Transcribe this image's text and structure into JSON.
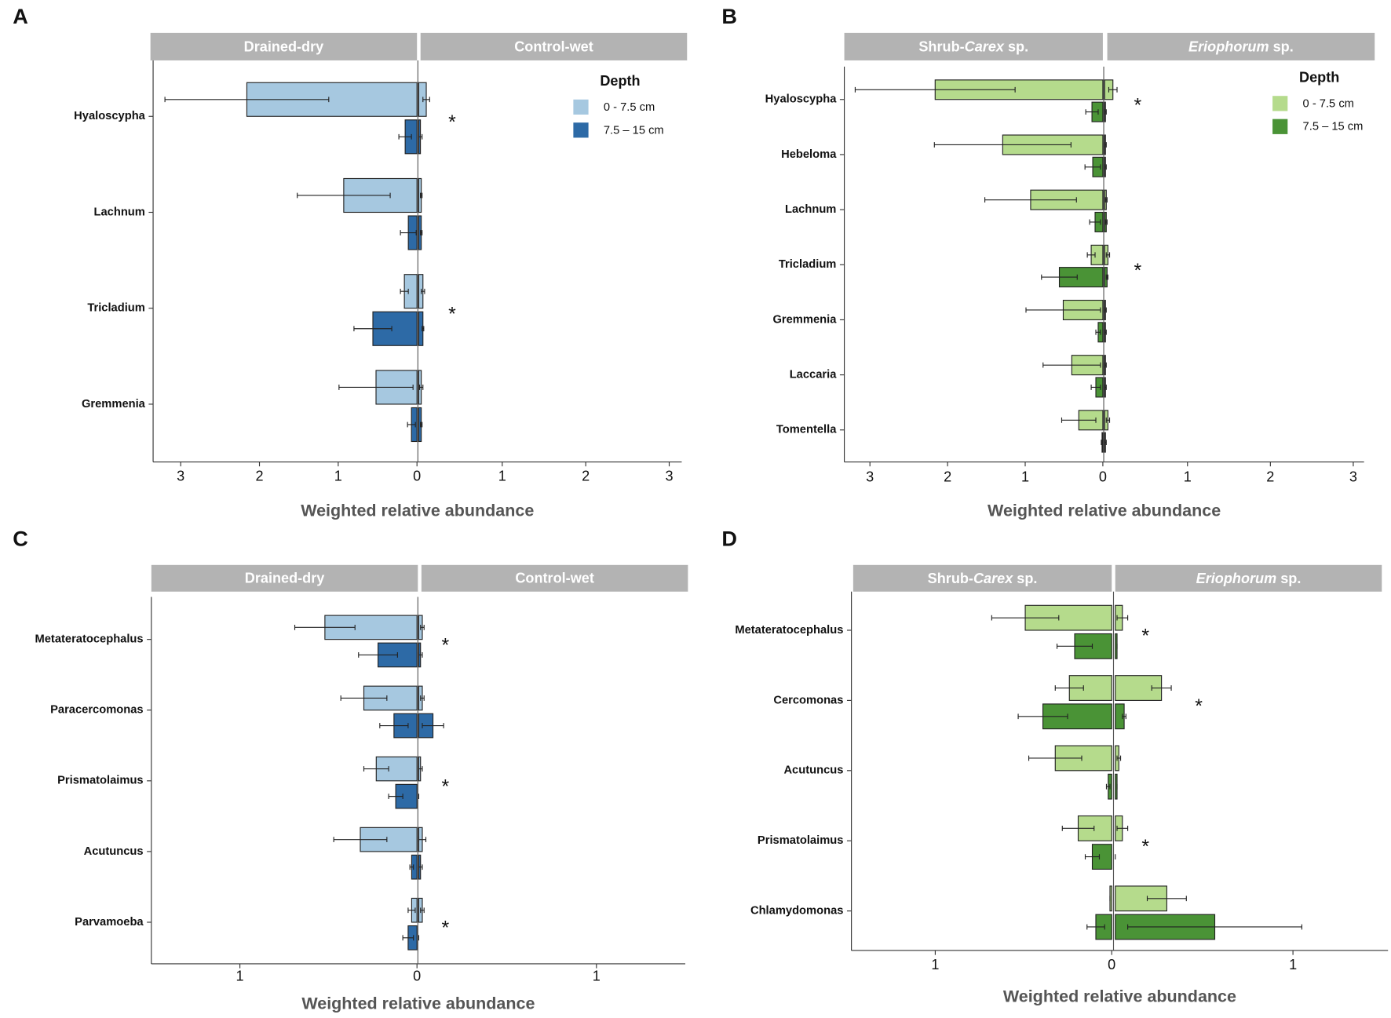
{
  "chart_data": [
    {
      "type": "bar",
      "panel_label": "A",
      "xlabel": "Weighted relative abundance",
      "categories": [
        "Hyaloscypha",
        "Lachnum",
        "Tricladium",
        "Gremmenia"
      ],
      "legend_title": "Depth",
      "series": [
        {
          "name": "0 - 7.5 cm",
          "color": "#a6c8e0"
        },
        {
          "name": "7.5 – 15 cm",
          "color": "#2d6aa6"
        }
      ],
      "facets": [
        {
          "label": "Drained-dry",
          "xlim": [
            3.35,
            0
          ],
          "xticks": [
            3,
            2,
            1,
            0
          ],
          "values": [
            [
              2.16,
              0.93,
              0.16,
              0.52
            ],
            [
              0.15,
              0.11,
              0.56,
              0.07
            ]
          ],
          "errors": [
            [
              1.04,
              0.59,
              0.05,
              0.47
            ],
            [
              0.08,
              0.1,
              0.24,
              0.05
            ]
          ]
        },
        {
          "label": "Control-wet",
          "xlim": [
            0,
            3.15
          ],
          "xticks": [
            1,
            2,
            3
          ],
          "values": [
            [
              0.09,
              0.03,
              0.05,
              0.03
            ],
            [
              0.02,
              0.03,
              0.05,
              0.03
            ]
          ],
          "errors": [
            [
              0.04,
              0.01,
              0.02,
              0.02
            ],
            [
              0.02,
              0.01,
              0.01,
              0.01
            ]
          ]
        }
      ],
      "annotations": [
        {
          "text": "*",
          "category": 0,
          "x": 0.4,
          "color": "#d62728"
        },
        {
          "text": "*",
          "category": 2,
          "x": 0.4,
          "color": "#d62728"
        }
      ]
    },
    {
      "type": "bar",
      "panel_label": "B",
      "xlabel": "Weighted relative abundance",
      "categories": [
        "Hyaloscypha",
        "Hebeloma",
        "Lachnum",
        "Tricladium",
        "Gremmenia",
        "Laccaria",
        "Tomentella"
      ],
      "legend_title": "Depth",
      "series": [
        {
          "name": "0 - 7.5 cm",
          "color": "#b5db8c"
        },
        {
          "name": "7.5 – 15 cm",
          "color": "#4a9336"
        }
      ],
      "facets": [
        {
          "label_parts": [
            {
              "text": "Shrub-"
            },
            {
              "text": "Carex",
              "italic": true
            },
            {
              "text": " sp."
            }
          ],
          "xlim": [
            3.33,
            0
          ],
          "xticks": [
            3,
            2,
            1,
            0
          ],
          "values": [
            [
              2.16,
              1.29,
              0.93,
              0.15,
              0.51,
              0.4,
              0.31
            ],
            [
              0.14,
              0.13,
              0.1,
              0.56,
              0.06,
              0.09,
              0.01
            ]
          ],
          "errors": [
            [
              1.03,
              0.88,
              0.59,
              0.05,
              0.48,
              0.37,
              0.22
            ],
            [
              0.08,
              0.1,
              0.07,
              0.23,
              0.03,
              0.06,
              0.01
            ]
          ]
        },
        {
          "label_parts": [
            {
              "text": "Eriophorum",
              "italic": true
            },
            {
              "text": " sp."
            }
          ],
          "xlim": [
            0,
            3.13
          ],
          "xticks": [
            1,
            2,
            3
          ],
          "values": [
            [
              0.1,
              0.01,
              0.02,
              0.04,
              0.01,
              0.01,
              0.04
            ],
            [
              0.01,
              0.01,
              0.02,
              0.03,
              0.01,
              0.01,
              0.01
            ]
          ],
          "errors": [
            [
              0.05,
              0.01,
              0.01,
              0.02,
              0.01,
              0.01,
              0.02
            ],
            [
              0.01,
              0.01,
              0.01,
              0.01,
              0.01,
              0.01,
              0.01
            ]
          ]
        }
      ],
      "annotations": [
        {
          "text": "*",
          "category": 0,
          "x": 0.4,
          "color": "#d62728"
        },
        {
          "text": "*",
          "category": 3,
          "x": 0.4,
          "color": "#d62728"
        }
      ]
    },
    {
      "type": "bar",
      "panel_label": "C",
      "xlabel": "Weighted relative abundance",
      "categories": [
        "Metateratocephalus",
        "Paracercomonas",
        "Prismatolaimus",
        "Acutuncus",
        "Parvamoeba"
      ],
      "series": [
        {
          "color": "#a6c8e0"
        },
        {
          "color": "#2d6aa6"
        }
      ],
      "facets": [
        {
          "label": "Drained-dry",
          "xlim": [
            1.5,
            0
          ],
          "xticks": [
            1,
            0
          ],
          "values": [
            [
              0.52,
              0.3,
              0.23,
              0.32,
              0.03
            ],
            [
              0.22,
              0.13,
              0.12,
              0.03,
              0.05
            ]
          ],
          "errors": [
            [
              0.17,
              0.13,
              0.07,
              0.15,
              0.02
            ],
            [
              0.11,
              0.08,
              0.04,
              0.01,
              0.03
            ]
          ]
        },
        {
          "label": "Control-wet",
          "xlim": [
            0,
            1.5
          ],
          "xticks": [
            1
          ],
          "values": [
            [
              0.02,
              0.02,
              0.01,
              0.02,
              0.02
            ],
            [
              0.01,
              0.08,
              0,
              0.01,
              0
            ]
          ],
          "errors": [
            [
              0.01,
              0.01,
              0.01,
              0.02,
              0.01
            ],
            [
              0.01,
              0.06,
              0,
              0.01,
              0
            ]
          ]
        }
      ],
      "annotations": [
        {
          "text": "*",
          "category": 0,
          "x": 0.15,
          "color": "#d62728"
        },
        {
          "text": "*",
          "category": 2,
          "x": 0.15,
          "color": "#d62728"
        },
        {
          "text": "*",
          "category": 4,
          "x": 0.15,
          "color": "#d62728"
        }
      ]
    },
    {
      "type": "bar",
      "panel_label": "D",
      "xlabel": "Weighted relative abundance",
      "categories": [
        "Metateratocephalus",
        "Cercomonas",
        "Acutuncus",
        "Prismatolaimus",
        "Chlamydomonas"
      ],
      "series": [
        {
          "color": "#b5db8c"
        },
        {
          "color": "#4a9336"
        }
      ],
      "facets": [
        {
          "label_parts": [
            {
              "text": "Shrub-"
            },
            {
              "text": "Carex",
              "italic": true
            },
            {
              "text": " sp."
            }
          ],
          "xlim": [
            1.475,
            0
          ],
          "xticks": [
            1,
            0
          ],
          "values": [
            [
              0.49,
              0.24,
              0.32,
              0.19,
              0.01
            ],
            [
              0.21,
              0.39,
              0.02,
              0.11,
              0.09
            ]
          ],
          "errors": [
            [
              0.19,
              0.08,
              0.15,
              0.09,
              0
            ],
            [
              0.1,
              0.14,
              0.01,
              0.04,
              0.05
            ]
          ]
        },
        {
          "label_parts": [
            {
              "text": "Eriophorum",
              "italic": true
            },
            {
              "text": " sp."
            }
          ],
          "xlim": [
            0,
            1.535
          ],
          "xticks": [
            1
          ],
          "values": [
            [
              0.04,
              0.26,
              0.02,
              0.04,
              0.29
            ],
            [
              0.01,
              0.05,
              0.01,
              0,
              0.56
            ]
          ],
          "errors": [
            [
              0.03,
              0.055,
              0.01,
              0.03,
              0.11
            ],
            [
              0,
              0.01,
              0,
              0,
              0.49
            ]
          ]
        }
      ],
      "annotations": [
        {
          "text": "*",
          "category": 0,
          "x": 0.17,
          "color": "#d62728"
        },
        {
          "text": "*",
          "category": 1,
          "x": 0.47,
          "color": "#3a7fb5"
        },
        {
          "text": "*",
          "category": 3,
          "x": 0.17,
          "color": "#d62728"
        }
      ]
    }
  ]
}
